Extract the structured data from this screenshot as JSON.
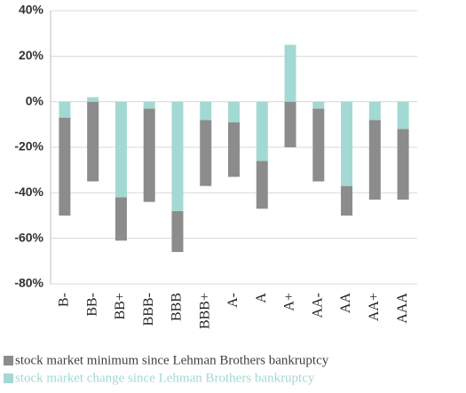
{
  "chart_data": {
    "type": "floating-bar",
    "categories": [
      "B-",
      "BB-",
      "BB+",
      "BBB-",
      "BBB",
      "BBB+",
      "A-",
      "A",
      "A+",
      "AA-",
      "AA",
      "AA+",
      "AAA"
    ],
    "series": [
      {
        "name": "stock market minimum since Lehman Brothers bankruptcy",
        "color": "#8c8c8c",
        "values": [
          -50,
          -35,
          -61,
          -44,
          -66,
          -37,
          -33,
          -47,
          -20,
          -35,
          -50,
          -43,
          -43
        ]
      },
      {
        "name": "stock market change since Lehman Brothers bankruptcy",
        "color": "#a3d9d3",
        "values": [
          -7,
          2,
          -42,
          -3,
          -48,
          -8,
          -9,
          -26,
          25,
          -3,
          -37,
          -8,
          -12
        ]
      }
    ],
    "ylim": [
      -80,
      40
    ],
    "yticks": [
      {
        "value": -80,
        "label": "-80%"
      },
      {
        "value": -60,
        "label": "-60%"
      },
      {
        "value": -40,
        "label": "-40%"
      },
      {
        "value": -20,
        "label": "-20%"
      },
      {
        "value": 0,
        "label": "0%"
      },
      {
        "value": 20,
        "label": "20%"
      },
      {
        "value": 40,
        "label": "40%"
      }
    ],
    "grid": true
  }
}
